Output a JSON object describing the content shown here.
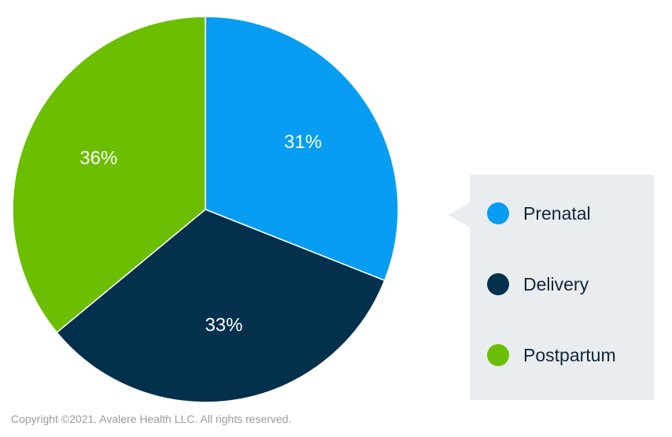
{
  "chart_data": {
    "type": "pie",
    "categories": [
      "Prenatal",
      "Delivery",
      "Postpartum"
    ],
    "values": [
      31,
      33,
      36
    ],
    "value_labels": [
      "31%",
      "33%",
      "36%"
    ],
    "colors": [
      "#069df2",
      "#03304d",
      "#6bbf00"
    ],
    "start_angle_deg": 0,
    "direction": "clockwise",
    "legend_placement": "right"
  },
  "legend": {
    "items": [
      {
        "label": "Prenatal",
        "color": "#069df2"
      },
      {
        "label": "Delivery",
        "color": "#03304d"
      },
      {
        "label": "Postpartum",
        "color": "#6bbf00"
      }
    ]
  },
  "footer": {
    "copyright": "Copyright ©2021. Avalere Health LLC. All rights reserved."
  }
}
